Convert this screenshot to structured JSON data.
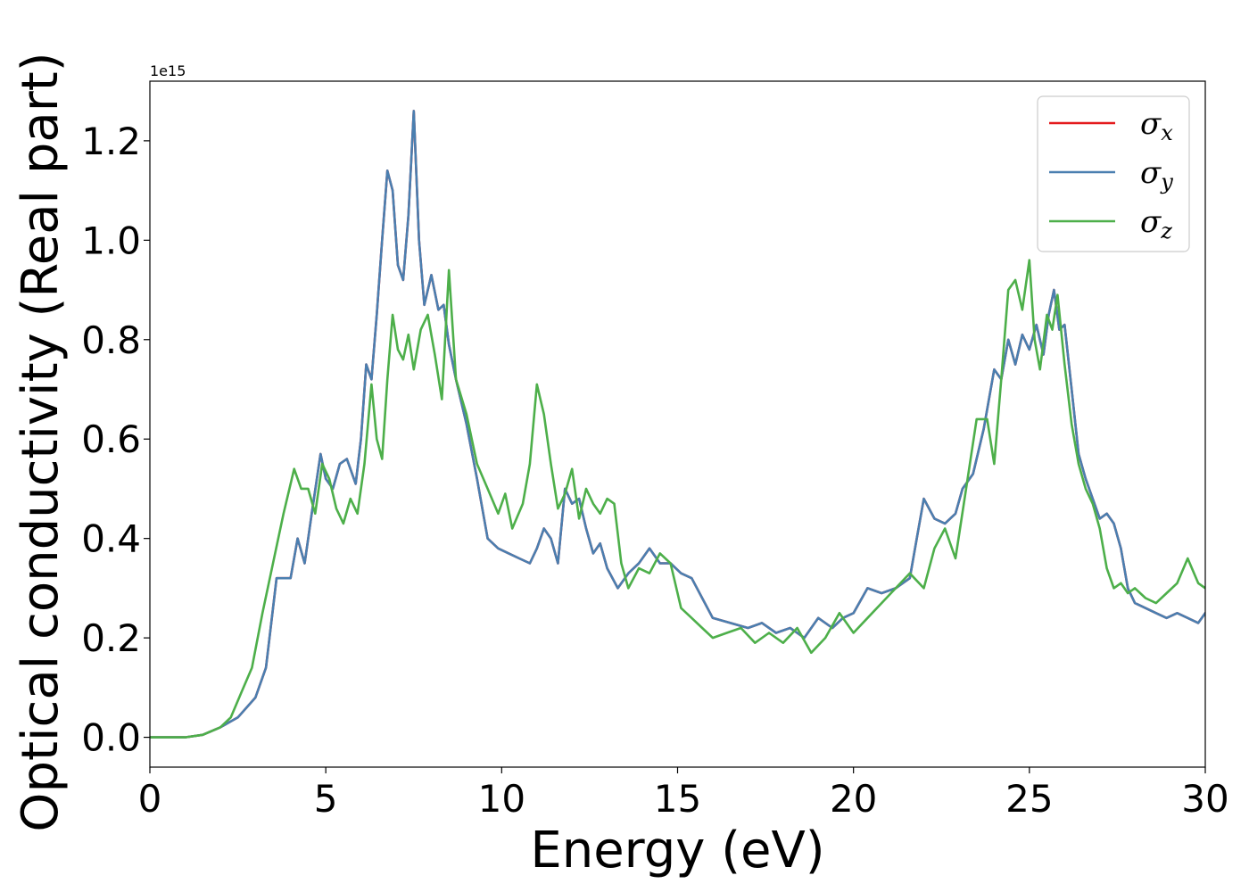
{
  "chart_data": {
    "type": "line",
    "title": "",
    "xlabel": "Energy (eV)",
    "ylabel": "Optical conductivity (Real part)",
    "y_offset_label": "1e15",
    "xlim": [
      0,
      30
    ],
    "ylim": [
      -0.06,
      1.32
    ],
    "xticks": [
      0,
      5,
      10,
      15,
      20,
      25,
      30
    ],
    "xtick_labels": [
      "0",
      "5",
      "10",
      "15",
      "20",
      "25",
      "30"
    ],
    "yticks": [
      0.0,
      0.2,
      0.4,
      0.6,
      0.8,
      1.0,
      1.2
    ],
    "ytick_labels": [
      "0.0",
      "0.2",
      "0.4",
      "0.6",
      "0.8",
      "1.0",
      "1.2"
    ],
    "grid": false,
    "legend_position": "top-right",
    "series": [
      {
        "name": "σx",
        "symbol": "σ",
        "subscript": "x",
        "color": "#e41a1c",
        "x": [
          0,
          1,
          1.5,
          2,
          2.5,
          3,
          3.3,
          3.6,
          4,
          4.2,
          4.4,
          4.6,
          4.85,
          5,
          5.2,
          5.4,
          5.6,
          5.85,
          6,
          6.15,
          6.3,
          6.45,
          6.6,
          6.75,
          6.9,
          7.05,
          7.2,
          7.35,
          7.5,
          7.65,
          7.8,
          8.0,
          8.2,
          8.35,
          8.5,
          8.7,
          9.0,
          9.3,
          9.6,
          9.9,
          10.2,
          10.5,
          10.8,
          11.0,
          11.2,
          11.4,
          11.6,
          11.8,
          12.0,
          12.2,
          12.4,
          12.6,
          12.8,
          13.0,
          13.3,
          13.6,
          13.9,
          14.2,
          14.5,
          14.8,
          15.1,
          15.4,
          15.7,
          16.0,
          16.5,
          17.0,
          17.4,
          17.8,
          18.2,
          18.6,
          19.0,
          19.4,
          19.7,
          20.0,
          20.4,
          20.8,
          21.2,
          21.6,
          21.8,
          22.0,
          22.3,
          22.6,
          22.9,
          23.1,
          23.4,
          23.7,
          24.0,
          24.2,
          24.4,
          24.6,
          24.8,
          25.0,
          25.2,
          25.4,
          25.55,
          25.7,
          25.85,
          26.0,
          26.2,
          26.4,
          26.6,
          26.8,
          27.0,
          27.2,
          27.4,
          27.6,
          27.8,
          28.0,
          28.3,
          28.6,
          28.9,
          29.2,
          29.5,
          29.8,
          30
        ],
        "y": [
          0,
          0,
          0.005,
          0.02,
          0.04,
          0.08,
          0.14,
          0.32,
          0.32,
          0.4,
          0.35,
          0.45,
          0.57,
          0.52,
          0.5,
          0.55,
          0.56,
          0.51,
          0.6,
          0.75,
          0.72,
          0.85,
          1.0,
          1.14,
          1.1,
          0.95,
          0.92,
          1.05,
          1.26,
          1.0,
          0.87,
          0.93,
          0.86,
          0.87,
          0.79,
          0.72,
          0.63,
          0.52,
          0.4,
          0.38,
          0.37,
          0.36,
          0.35,
          0.38,
          0.42,
          0.4,
          0.35,
          0.5,
          0.47,
          0.48,
          0.42,
          0.37,
          0.39,
          0.34,
          0.3,
          0.33,
          0.35,
          0.38,
          0.35,
          0.35,
          0.33,
          0.32,
          0.28,
          0.24,
          0.23,
          0.22,
          0.23,
          0.21,
          0.22,
          0.2,
          0.24,
          0.22,
          0.24,
          0.25,
          0.3,
          0.29,
          0.3,
          0.32,
          0.4,
          0.48,
          0.44,
          0.43,
          0.45,
          0.5,
          0.53,
          0.62,
          0.74,
          0.72,
          0.8,
          0.75,
          0.81,
          0.78,
          0.83,
          0.77,
          0.85,
          0.9,
          0.82,
          0.83,
          0.7,
          0.57,
          0.52,
          0.48,
          0.44,
          0.45,
          0.43,
          0.38,
          0.3,
          0.27,
          0.26,
          0.25,
          0.24,
          0.25,
          0.24,
          0.23,
          0.25
        ],
        "note_hidden": true
      },
      {
        "name": "σy",
        "symbol": "σ",
        "subscript": "y",
        "color": "#4a7fb0",
        "same_as": 0
      },
      {
        "name": "σz",
        "symbol": "σ",
        "subscript": "z",
        "color": "#4daf4a",
        "x": [
          0,
          1,
          1.5,
          2,
          2.3,
          2.6,
          2.9,
          3.2,
          3.5,
          3.8,
          4.1,
          4.3,
          4.5,
          4.7,
          4.9,
          5.1,
          5.3,
          5.5,
          5.7,
          5.9,
          6.1,
          6.3,
          6.45,
          6.6,
          6.75,
          6.9,
          7.05,
          7.2,
          7.35,
          7.5,
          7.7,
          7.9,
          8.1,
          8.3,
          8.5,
          8.7,
          9.0,
          9.3,
          9.6,
          9.9,
          10.1,
          10.3,
          10.6,
          10.8,
          11.0,
          11.2,
          11.4,
          11.6,
          11.8,
          12.0,
          12.2,
          12.4,
          12.6,
          12.8,
          13.0,
          13.2,
          13.4,
          13.6,
          13.9,
          14.2,
          14.5,
          14.8,
          15.1,
          15.4,
          15.7,
          16.0,
          16.4,
          16.8,
          17.2,
          17.6,
          18.0,
          18.4,
          18.8,
          19.2,
          19.6,
          20.0,
          20.4,
          20.8,
          21.2,
          21.6,
          22.0,
          22.3,
          22.6,
          22.9,
          23.2,
          23.5,
          23.8,
          24.0,
          24.2,
          24.4,
          24.6,
          24.8,
          25.0,
          25.15,
          25.3,
          25.5,
          25.65,
          25.8,
          26.0,
          26.2,
          26.4,
          26.6,
          26.8,
          27.0,
          27.2,
          27.4,
          27.6,
          27.8,
          28.0,
          28.3,
          28.6,
          28.9,
          29.2,
          29.5,
          29.8,
          30
        ],
        "y": [
          0,
          0,
          0.005,
          0.02,
          0.04,
          0.09,
          0.14,
          0.25,
          0.35,
          0.45,
          0.54,
          0.5,
          0.5,
          0.45,
          0.55,
          0.52,
          0.46,
          0.43,
          0.48,
          0.45,
          0.55,
          0.71,
          0.6,
          0.56,
          0.72,
          0.85,
          0.78,
          0.76,
          0.81,
          0.74,
          0.82,
          0.85,
          0.77,
          0.68,
          0.94,
          0.72,
          0.65,
          0.55,
          0.5,
          0.45,
          0.49,
          0.42,
          0.47,
          0.55,
          0.71,
          0.65,
          0.55,
          0.46,
          0.49,
          0.54,
          0.44,
          0.5,
          0.47,
          0.45,
          0.48,
          0.47,
          0.35,
          0.3,
          0.34,
          0.33,
          0.37,
          0.35,
          0.26,
          0.24,
          0.22,
          0.2,
          0.21,
          0.22,
          0.19,
          0.21,
          0.19,
          0.22,
          0.17,
          0.2,
          0.25,
          0.21,
          0.24,
          0.27,
          0.3,
          0.33,
          0.3,
          0.38,
          0.42,
          0.36,
          0.5,
          0.64,
          0.64,
          0.55,
          0.72,
          0.9,
          0.92,
          0.86,
          0.96,
          0.8,
          0.74,
          0.85,
          0.82,
          0.89,
          0.75,
          0.63,
          0.55,
          0.5,
          0.47,
          0.42,
          0.34,
          0.3,
          0.31,
          0.29,
          0.3,
          0.28,
          0.27,
          0.29,
          0.31,
          0.36,
          0.31,
          0.3
        ],
        "note_hidden": false
      }
    ]
  }
}
